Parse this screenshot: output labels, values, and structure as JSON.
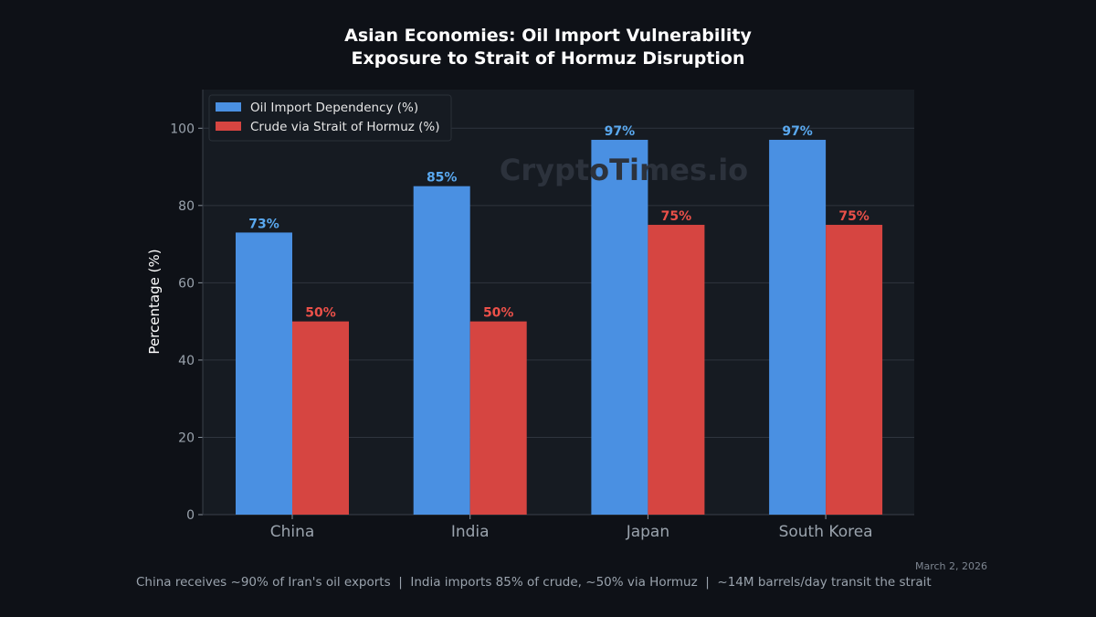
{
  "chart_data": {
    "type": "bar",
    "title": "Asian Economies: Oil Import Vulnerability\nExposure to Strait of Hormuz Disruption",
    "title_lines": [
      "Asian Economies: Oil Import Vulnerability",
      "Exposure to Strait of Hormuz Disruption"
    ],
    "categories": [
      "China",
      "India",
      "Japan",
      "South Korea"
    ],
    "series": [
      {
        "name": "Oil Import Dependency (%)",
        "values": [
          73,
          85,
          97,
          97
        ],
        "color": "#4a90e2",
        "label_color": "#5aa9f0"
      },
      {
        "name": "Crude via Strait of Hormuz (%)",
        "values": [
          50,
          50,
          75,
          75
        ],
        "color": "#d64541",
        "label_color": "#ea5049"
      }
    ],
    "data_labels": [
      [
        "73%",
        "85%",
        "97%",
        "97%"
      ],
      [
        "50%",
        "50%",
        "75%",
        "75%"
      ]
    ],
    "xlabel": "",
    "ylabel": "Percentage (%)",
    "ylim": [
      0,
      110
    ],
    "yticks": [
      0,
      20,
      40,
      60,
      80,
      100
    ],
    "grid": true,
    "legend_position": "top-left"
  },
  "watermark": "CryptoTimes.io",
  "date": "March 2, 2026",
  "footnote": "China receives ~90% of Iran's oil exports  |  India imports 85% of crude, ~50% via Hormuz  |  ~14M barrels/day transit the strait"
}
